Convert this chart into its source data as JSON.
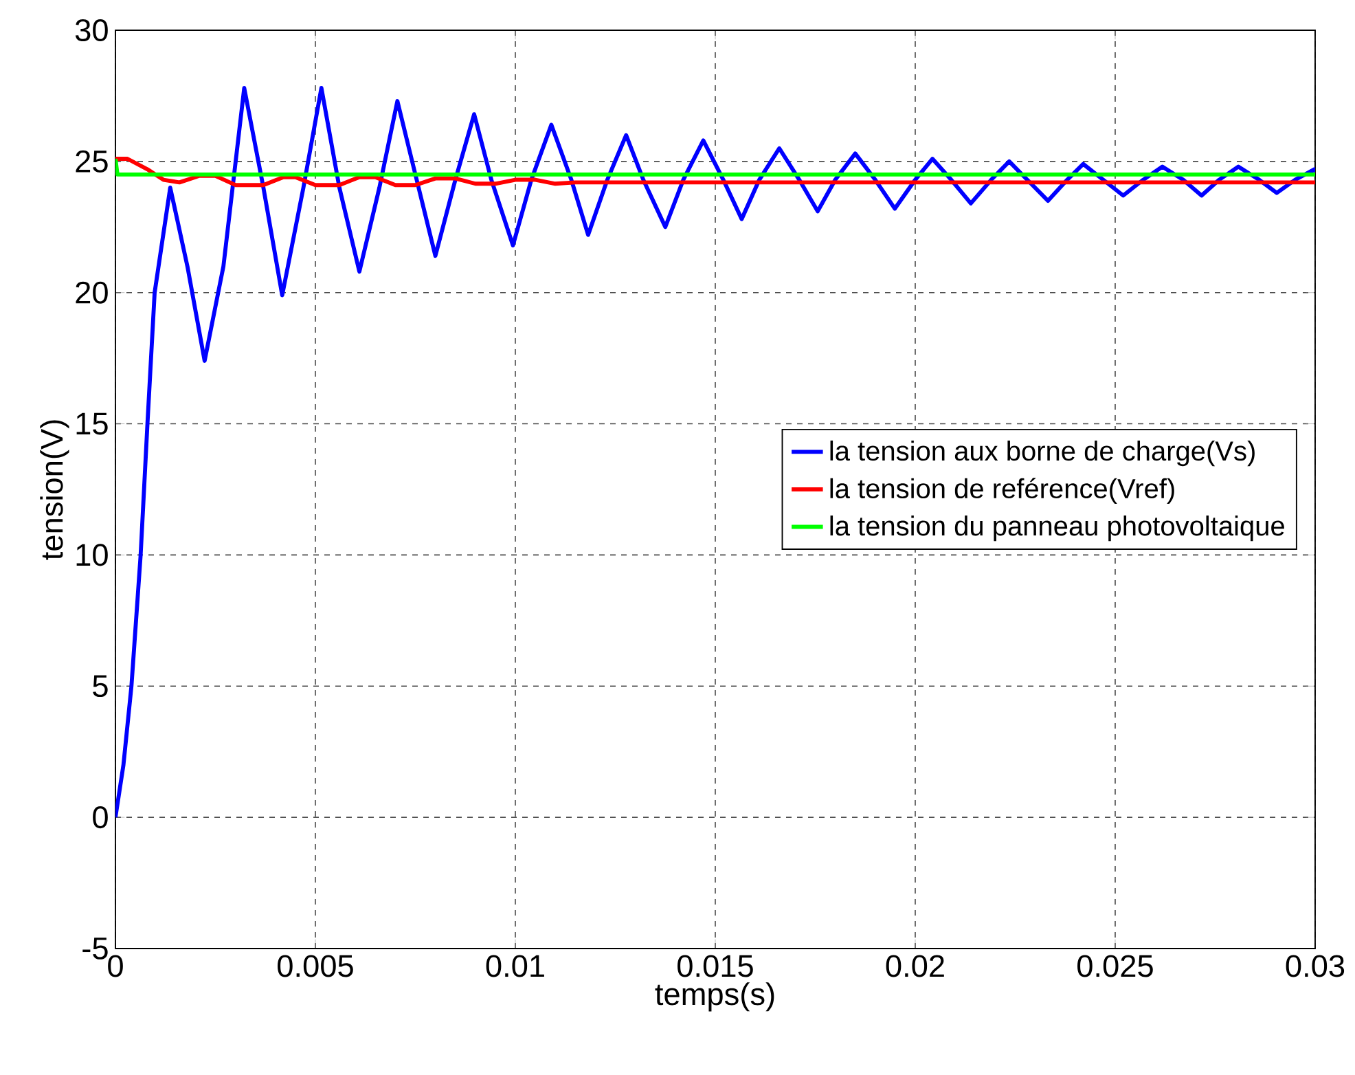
{
  "chart_data": {
    "type": "line",
    "xlabel": "temps(s)",
    "ylabel": "tension(V)",
    "xlim": [
      0,
      0.03
    ],
    "ylim": [
      -5,
      30
    ],
    "xticks": [
      0,
      0.005,
      0.01,
      0.015,
      0.02,
      0.025,
      0.03
    ],
    "yticks": [
      -5,
      0,
      5,
      10,
      15,
      20,
      25,
      30
    ],
    "grid": true,
    "legend": "right",
    "line_style": "solid",
    "series": [
      {
        "name": "la tension aux borne de charge(Vs)",
        "color": "#0000ff",
        "x": [
          0,
          0.0002,
          0.0004,
          0.00063,
          0.0008,
          0.00098,
          0.00137,
          0.0018,
          0.00223,
          0.0027,
          0.00322,
          0.0037,
          0.00417,
          0.0047,
          0.00515,
          0.0056,
          0.0061,
          0.0066,
          0.00705,
          0.0075,
          0.008,
          0.0085,
          0.00897,
          0.0094,
          0.00994,
          0.0104,
          0.0109,
          0.0114,
          0.01182,
          0.0123,
          0.01277,
          0.0132,
          0.01375,
          0.0142,
          0.0147,
          0.0152,
          0.01566,
          0.0161,
          0.0166,
          0.0171,
          0.01756,
          0.018,
          0.0185,
          0.019,
          0.01949,
          0.02,
          0.02043,
          0.0209,
          0.02139,
          0.0219,
          0.02235,
          0.0228,
          0.02332,
          0.0238,
          0.0242,
          0.0247,
          0.0252,
          0.0257,
          0.02618,
          0.0267,
          0.02716,
          0.0276,
          0.02808,
          0.0286,
          0.02904,
          0.0295,
          0.02998,
          0.03
        ],
        "values": [
          0,
          2,
          5,
          10,
          15,
          20,
          24,
          21,
          17.4,
          21,
          27.8,
          24,
          19.9,
          24,
          27.8,
          24,
          20.8,
          24,
          27.3,
          24.5,
          21.4,
          24.3,
          26.8,
          24.3,
          21.8,
          24.3,
          26.4,
          24.3,
          22.2,
          24.3,
          26,
          24.3,
          22.5,
          24.3,
          25.8,
          24.3,
          22.8,
          24.3,
          25.5,
          24.3,
          23.1,
          24.3,
          25.3,
          24.3,
          23.2,
          24.3,
          25.1,
          24.3,
          23.4,
          24.3,
          25,
          24.3,
          23.5,
          24.3,
          24.9,
          24.3,
          23.7,
          24.3,
          24.8,
          24.3,
          23.7,
          24.3,
          24.8,
          24.3,
          23.8,
          24.3,
          24.7,
          24.6
        ]
      },
      {
        "name": "la tension de reférence(Vref)",
        "color": "#ff0000",
        "x": [
          0,
          0.0003,
          0.0008,
          0.0012,
          0.0016,
          0.0021,
          0.0025,
          0.003,
          0.0037,
          0.0042,
          0.0045,
          0.005,
          0.0056,
          0.0061,
          0.0065,
          0.007,
          0.0075,
          0.008,
          0.0085,
          0.009,
          0.0095,
          0.01,
          0.0105,
          0.011,
          0.0115,
          0.012,
          0.03
        ],
        "values": [
          25.1,
          25.1,
          24.7,
          24.3,
          24.2,
          24.45,
          24.45,
          24.1,
          24.1,
          24.4,
          24.4,
          24.1,
          24.1,
          24.4,
          24.4,
          24.1,
          24.1,
          24.35,
          24.35,
          24.15,
          24.15,
          24.3,
          24.3,
          24.15,
          24.2,
          24.2,
          24.2
        ]
      },
      {
        "name": "la tension du panneau photovoltaique",
        "color": "#00ff00",
        "x": [
          0,
          5e-05,
          0.03
        ],
        "values": [
          25.1,
          24.5,
          24.5
        ]
      }
    ]
  }
}
